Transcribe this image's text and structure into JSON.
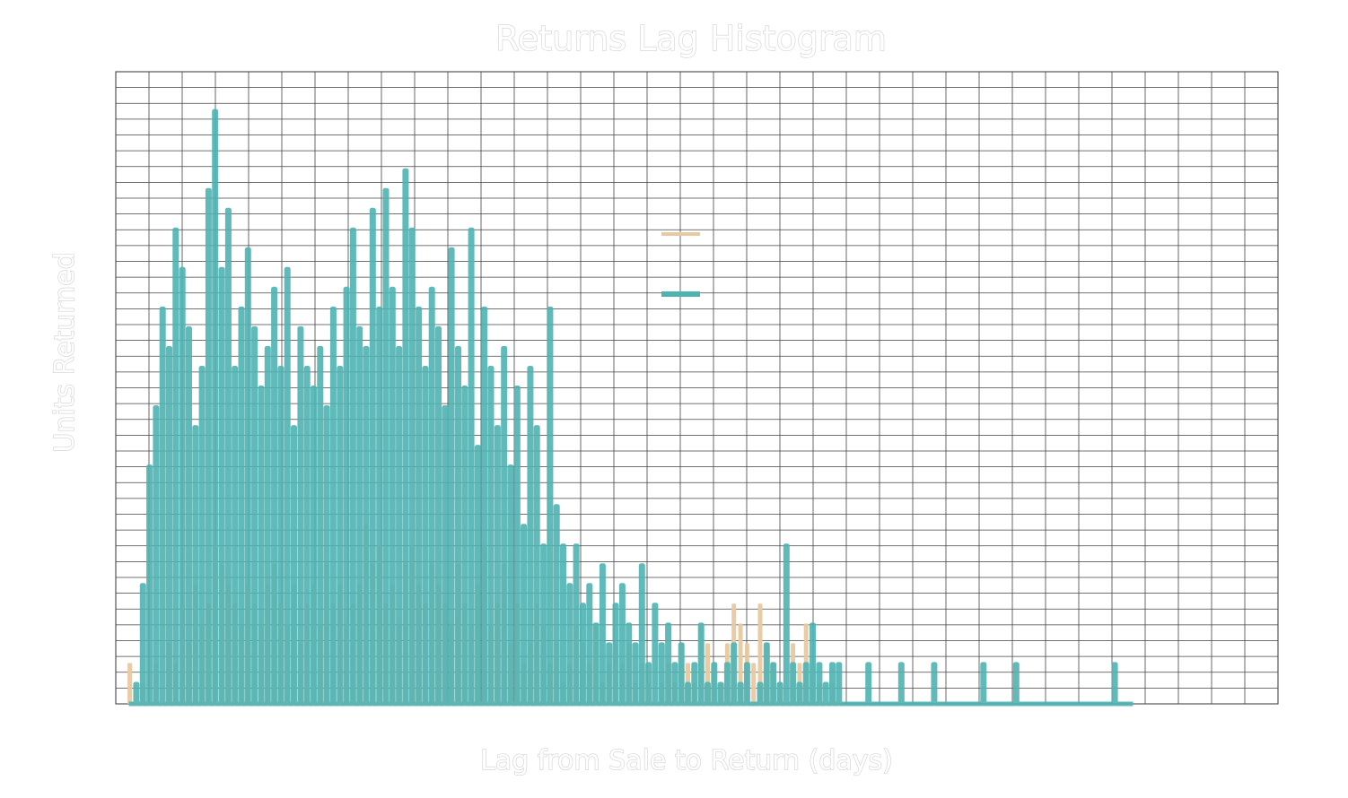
{
  "chart_data": {
    "type": "line",
    "title": "Returns Lag Histogram",
    "xlabel": "Lag from Sale to Return (days)",
    "ylabel": "Units Returned",
    "xlim": [
      -8,
      700
    ],
    "ylim": [
      0,
      32
    ],
    "grid": true,
    "legend_position": "upper-center-right",
    "series": [
      {
        "color": "#E8C9A0",
        "x": [
          0,
          4,
          8,
          12,
          16,
          20,
          24,
          28,
          32,
          36,
          40,
          44,
          48,
          52,
          56,
          60,
          64,
          68,
          72,
          76,
          80,
          84,
          88,
          92,
          96,
          100,
          104,
          108,
          112,
          116,
          120,
          124,
          128,
          132,
          136,
          140,
          144,
          148,
          152,
          156,
          160,
          164,
          168,
          172,
          176,
          180,
          184,
          188,
          192,
          196,
          200,
          204,
          208,
          212,
          216,
          220,
          224,
          228,
          232,
          236,
          240,
          244,
          248,
          252,
          256,
          260,
          264,
          268,
          272,
          276,
          280,
          284,
          288,
          292,
          296,
          300,
          304,
          308,
          312,
          316,
          320,
          324,
          328,
          332,
          336,
          340,
          344,
          348,
          352,
          356,
          360,
          364,
          368,
          372,
          376,
          380,
          384,
          388,
          392,
          396,
          400,
          404,
          408,
          412,
          416,
          420,
          424,
          428,
          432
        ],
        "values": [
          2,
          0,
          1,
          0,
          2,
          0,
          3,
          2,
          5,
          3,
          6,
          4,
          5,
          8,
          7,
          6,
          5,
          4,
          6,
          5,
          4,
          6,
          7,
          5,
          4,
          6,
          3,
          5,
          6,
          4,
          7,
          5,
          6,
          4,
          5,
          6,
          9,
          7,
          8,
          5,
          6,
          4,
          7,
          8,
          6,
          5,
          7,
          6,
          5,
          4,
          7,
          5,
          4,
          6,
          8,
          4,
          5,
          7,
          3,
          5,
          2,
          3,
          5,
          4,
          2,
          3,
          1,
          2,
          4,
          3,
          2,
          4,
          1,
          2,
          3,
          2,
          3,
          1,
          2,
          1,
          0,
          1,
          2,
          1,
          3,
          2,
          1,
          4,
          3,
          2,
          1,
          3,
          5,
          4,
          3,
          2,
          5,
          3,
          2,
          1,
          0,
          3,
          2,
          4,
          2,
          1,
          0,
          1,
          0
        ]
      },
      {
        "color": "#4FB3B2",
        "x": [
          0,
          4,
          8,
          12,
          16,
          20,
          24,
          28,
          32,
          36,
          40,
          44,
          48,
          52,
          56,
          60,
          64,
          68,
          72,
          76,
          80,
          84,
          88,
          92,
          96,
          100,
          104,
          108,
          112,
          116,
          120,
          124,
          128,
          132,
          136,
          140,
          144,
          148,
          152,
          156,
          160,
          164,
          168,
          172,
          176,
          180,
          184,
          188,
          192,
          196,
          200,
          204,
          208,
          212,
          216,
          220,
          224,
          228,
          232,
          236,
          240,
          244,
          248,
          252,
          256,
          260,
          264,
          268,
          272,
          276,
          280,
          284,
          288,
          292,
          296,
          300,
          304,
          308,
          312,
          316,
          320,
          324,
          328,
          332,
          336,
          340,
          344,
          348,
          352,
          356,
          360,
          364,
          368,
          372,
          376,
          380,
          384,
          388,
          392,
          396,
          400,
          404,
          408,
          412,
          416,
          420,
          424,
          428,
          432,
          440,
          450,
          460,
          470,
          480,
          490,
          500,
          510,
          520,
          530,
          540,
          550,
          560,
          570,
          580,
          590,
          600,
          610
        ],
        "values": [
          0,
          1,
          6,
          12,
          15,
          20,
          18,
          24,
          22,
          19,
          14,
          17,
          26,
          30,
          22,
          25,
          17,
          20,
          23,
          19,
          16,
          18,
          21,
          17,
          22,
          14,
          19,
          17,
          16,
          18,
          15,
          20,
          17,
          21,
          24,
          19,
          18,
          25,
          20,
          26,
          21,
          18,
          27,
          24,
          20,
          17,
          21,
          19,
          15,
          23,
          18,
          16,
          24,
          13,
          20,
          17,
          14,
          18,
          12,
          16,
          9,
          17,
          14,
          8,
          20,
          10,
          8,
          6,
          8,
          5,
          6,
          4,
          7,
          3,
          5,
          6,
          4,
          3,
          7,
          2,
          5,
          3,
          4,
          2,
          3,
          1,
          2,
          4,
          1,
          2,
          1,
          2,
          3,
          1,
          2,
          0,
          1,
          3,
          2,
          1,
          8,
          2,
          1,
          2,
          4,
          2,
          1,
          2,
          2,
          0,
          2,
          0,
          2,
          0,
          2,
          0,
          0,
          2,
          0,
          2,
          0,
          0,
          0,
          0,
          0,
          2,
          0
        ]
      }
    ]
  }
}
